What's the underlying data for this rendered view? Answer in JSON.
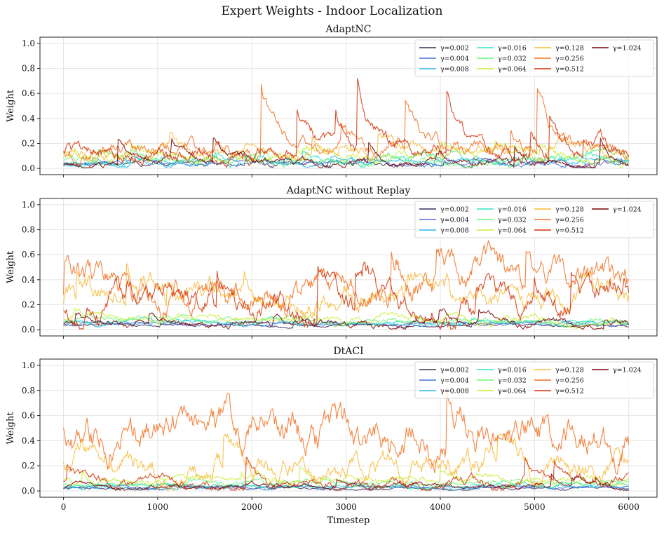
{
  "figure": {
    "title": "Expert Weights - Indoor Localization"
  },
  "chart_data": [
    {
      "type": "line",
      "title": "AdaptNC",
      "xlabel": "",
      "ylabel": "Weight",
      "xlim": [
        -250,
        6300
      ],
      "ylim": [
        -0.05,
        1.05
      ],
      "xticks": [
        0,
        1000,
        2000,
        3000,
        4000,
        5000,
        6000
      ],
      "yticks": [
        0.0,
        0.2,
        0.4,
        0.6,
        0.8,
        1.0
      ],
      "grid": true,
      "legend": "top-right, 4 columns",
      "series": [
        {
          "name": "γ=0.002",
          "color": "#3b2a5e",
          "mean": 0.03,
          "noise": 0.02,
          "peak": 0.08,
          "seed": 11
        },
        {
          "name": "γ=0.004",
          "color": "#4c6edb",
          "mean": 0.04,
          "noise": 0.02,
          "peak": 0.1,
          "seed": 12
        },
        {
          "name": "γ=0.008",
          "color": "#29b6e8",
          "mean": 0.04,
          "noise": 0.02,
          "peak": 0.1,
          "seed": 13
        },
        {
          "name": "γ=0.016",
          "color": "#2ee6c0",
          "mean": 0.06,
          "noise": 0.03,
          "peak": 0.14,
          "seed": 14
        },
        {
          "name": "γ=0.032",
          "color": "#6af776",
          "mean": 0.07,
          "noise": 0.03,
          "peak": 0.16,
          "seed": 15
        },
        {
          "name": "γ=0.064",
          "color": "#c8ef34",
          "mean": 0.09,
          "noise": 0.04,
          "peak": 0.22,
          "seed": 16
        },
        {
          "name": "γ=0.128",
          "color": "#f9ba38",
          "mean": 0.12,
          "noise": 0.05,
          "peak": 0.35,
          "seed": 17
        },
        {
          "name": "γ=0.256",
          "color": "#f56f1f",
          "mean": 0.14,
          "noise": 0.06,
          "peak": 0.72,
          "seed": 18
        },
        {
          "name": "γ=0.512",
          "color": "#d23105",
          "mean": 0.13,
          "noise": 0.06,
          "peak": 0.78,
          "seed": 19
        },
        {
          "name": "γ=1.024",
          "color": "#7a0403",
          "mean": 0.03,
          "noise": 0.03,
          "peak": 0.25,
          "seed": 20
        }
      ]
    },
    {
      "type": "line",
      "title": "AdaptNC without Replay",
      "xlabel": "",
      "ylabel": "Weight",
      "xlim": [
        -250,
        6300
      ],
      "ylim": [
        -0.05,
        1.05
      ],
      "xticks": [
        0,
        1000,
        2000,
        3000,
        4000,
        5000,
        6000
      ],
      "yticks": [
        0.0,
        0.2,
        0.4,
        0.6,
        0.8,
        1.0
      ],
      "grid": true,
      "legend": "top-right, 4 columns",
      "series": [
        {
          "name": "γ=0.002",
          "color": "#3b2a5e",
          "mean": 0.03,
          "noise": 0.01,
          "peak": 0.06,
          "seed": 21
        },
        {
          "name": "γ=0.004",
          "color": "#4c6edb",
          "mean": 0.04,
          "noise": 0.01,
          "peak": 0.07,
          "seed": 22
        },
        {
          "name": "γ=0.008",
          "color": "#29b6e8",
          "mean": 0.05,
          "noise": 0.015,
          "peak": 0.09,
          "seed": 23
        },
        {
          "name": "γ=0.016",
          "color": "#2ee6c0",
          "mean": 0.06,
          "noise": 0.015,
          "peak": 0.1,
          "seed": 24
        },
        {
          "name": "γ=0.032",
          "color": "#6af776",
          "mean": 0.07,
          "noise": 0.02,
          "peak": 0.12,
          "seed": 25
        },
        {
          "name": "γ=0.064",
          "color": "#c8ef34",
          "mean": 0.09,
          "noise": 0.03,
          "peak": 0.18,
          "seed": 26
        },
        {
          "name": "γ=0.128",
          "color": "#f9ba38",
          "mean": 0.25,
          "noise": 0.1,
          "peak": 0.55,
          "seed": 27
        },
        {
          "name": "γ=0.256",
          "color": "#f56f1f",
          "mean": 0.32,
          "noise": 0.12,
          "peak": 0.72,
          "seed": 28
        },
        {
          "name": "γ=0.512",
          "color": "#d23105",
          "mean": 0.18,
          "noise": 0.1,
          "peak": 0.55,
          "seed": 29
        },
        {
          "name": "γ=1.024",
          "color": "#7a0403",
          "mean": 0.05,
          "noise": 0.03,
          "peak": 0.2,
          "seed": 30
        }
      ]
    },
    {
      "type": "line",
      "title": "DtACI",
      "xlabel": "Timestep",
      "ylabel": "Weight",
      "xlim": [
        -250,
        6300
      ],
      "ylim": [
        -0.05,
        1.05
      ],
      "xticks": [
        0,
        1000,
        2000,
        3000,
        4000,
        5000,
        6000
      ],
      "yticks": [
        0.0,
        0.2,
        0.4,
        0.6,
        0.8,
        1.0
      ],
      "grid": true,
      "legend": "top-right, 4 columns",
      "series": [
        {
          "name": "γ=0.002",
          "color": "#3b2a5e",
          "mean": 0.02,
          "noise": 0.01,
          "peak": 0.05,
          "seed": 31
        },
        {
          "name": "γ=0.004",
          "color": "#4c6edb",
          "mean": 0.03,
          "noise": 0.01,
          "peak": 0.06,
          "seed": 32
        },
        {
          "name": "γ=0.008",
          "color": "#29b6e8",
          "mean": 0.03,
          "noise": 0.015,
          "peak": 0.07,
          "seed": 33
        },
        {
          "name": "γ=0.016",
          "color": "#2ee6c0",
          "mean": 0.04,
          "noise": 0.015,
          "peak": 0.08,
          "seed": 34
        },
        {
          "name": "γ=0.032",
          "color": "#6af776",
          "mean": 0.05,
          "noise": 0.02,
          "peak": 0.1,
          "seed": 35
        },
        {
          "name": "γ=0.064",
          "color": "#c8ef34",
          "mean": 0.08,
          "noise": 0.03,
          "peak": 0.2,
          "seed": 36
        },
        {
          "name": "γ=0.128",
          "color": "#f9ba38",
          "mean": 0.2,
          "noise": 0.1,
          "peak": 0.45,
          "seed": 37
        },
        {
          "name": "γ=0.256",
          "color": "#f56f1f",
          "mean": 0.45,
          "noise": 0.15,
          "peak": 0.83,
          "seed": 38
        },
        {
          "name": "γ=0.512",
          "color": "#d23105",
          "mean": 0.06,
          "noise": 0.04,
          "peak": 0.3,
          "seed": 39
        },
        {
          "name": "γ=1.024",
          "color": "#7a0403",
          "mean": 0.03,
          "noise": 0.02,
          "peak": 0.15,
          "seed": 40
        }
      ]
    }
  ]
}
